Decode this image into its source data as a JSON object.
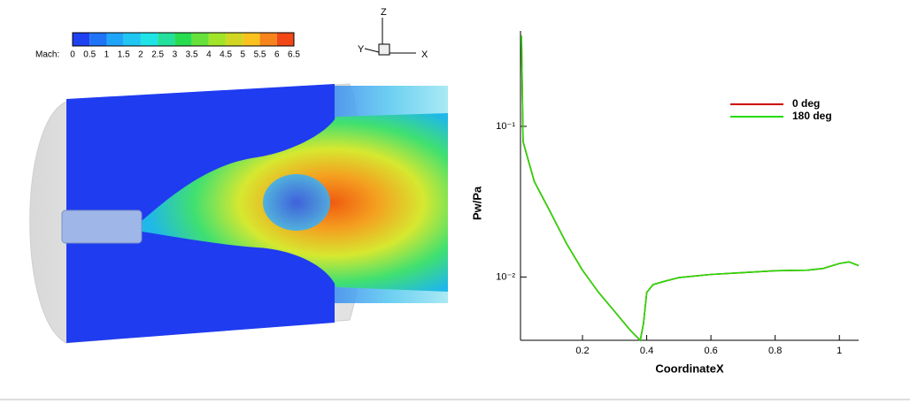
{
  "contour": {
    "legend_title": "Mach:",
    "levels": [
      0,
      0.5,
      1,
      1.5,
      2,
      2.5,
      3,
      3.5,
      4,
      4.5,
      5,
      5.5,
      6,
      6.5
    ],
    "axes": {
      "z": "Z",
      "y": "Y",
      "x": "X"
    }
  },
  "chart_data": {
    "type": "line",
    "x_label": "CoordinateX",
    "y_label": "Pw/Pa",
    "log_y": true,
    "legend": "upper right",
    "x": [
      0.01,
      0.015,
      0.05,
      0.1,
      0.15,
      0.2,
      0.25,
      0.3,
      0.35,
      0.38,
      0.39,
      0.4,
      0.42,
      0.45,
      0.5,
      0.6,
      0.7,
      0.8,
      0.9,
      0.95,
      1.0,
      1.03,
      1.06
    ],
    "series": [
      {
        "name": "0 deg",
        "color": "#cc0000",
        "values": [
          0.4,
          0.079,
          0.043,
          0.027,
          0.0167,
          0.0111,
          0.0079,
          0.0059,
          0.0044,
          0.0038,
          0.0049,
          0.0079,
          0.0089,
          0.0093,
          0.0099,
          0.0104,
          0.0107,
          0.011,
          0.0111,
          0.0114,
          0.0123,
          0.0126,
          0.0119
        ]
      },
      {
        "name": "180 deg",
        "color": "#22dd00",
        "values": [
          0.4,
          0.079,
          0.043,
          0.027,
          0.0167,
          0.0111,
          0.0079,
          0.0059,
          0.0044,
          0.0038,
          0.0049,
          0.0079,
          0.0089,
          0.0093,
          0.0099,
          0.0104,
          0.0107,
          0.011,
          0.0111,
          0.0114,
          0.0123,
          0.0126,
          0.0119
        ]
      }
    ],
    "xlim": [
      0.007,
      1.06
    ],
    "xticks": [
      0.2,
      0.4,
      0.6,
      0.8,
      1
    ],
    "ylim": [
      0.0038,
      0.43
    ],
    "yticks": [
      {
        "value": 0.1,
        "label": "10⁻¹"
      },
      {
        "value": 0.01,
        "label": "10⁻²"
      }
    ]
  }
}
